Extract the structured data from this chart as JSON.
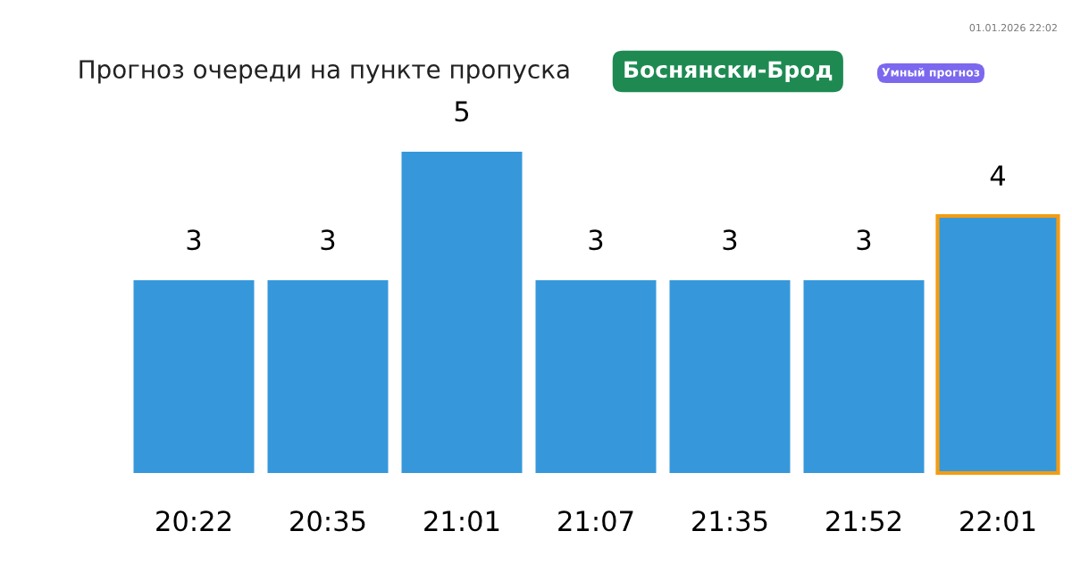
{
  "chart_data": {
    "type": "bar",
    "title": "Прогноз очереди на пункте пропуска",
    "subtitle": "Боснянски-Брод",
    "annotations": [
      "Умный прогноз",
      "01.01.2026 22:02"
    ],
    "categories": [
      "20:22",
      "20:35",
      "21:01",
      "21:07",
      "21:35",
      "21:52",
      "22:01"
    ],
    "values": [
      3,
      3,
      5,
      3,
      3,
      3,
      4
    ],
    "color": "#3698db",
    "data_labels": true,
    "grid": false,
    "legend": false,
    "tick_labels": "x"
  }
}
